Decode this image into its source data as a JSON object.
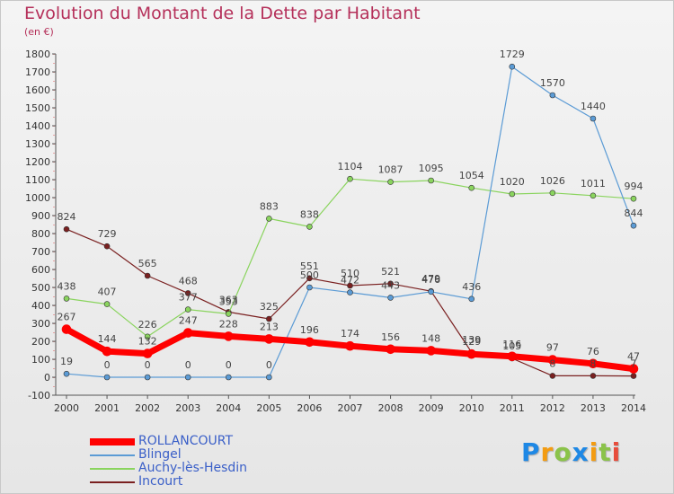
{
  "title": "Evolution du Montant de la Dette par Habitant",
  "subtitle": "(en €)",
  "logo": {
    "text": "Proxiti",
    "letters": [
      "P",
      "r",
      "o",
      "x",
      "i",
      "t",
      "i"
    ],
    "colors": [
      "#1e88e5",
      "#f39c12",
      "#8bc34a",
      "#1e88e5",
      "#f39c12",
      "#8bc34a",
      "#e74c3c"
    ]
  },
  "chart_data": {
    "type": "line",
    "title": "Evolution du Montant de la Dette par Habitant",
    "ylabel": "(en €)",
    "xlabel": "",
    "x": [
      "2000",
      "2001",
      "2002",
      "2003",
      "2004",
      "2005",
      "2006",
      "2007",
      "2008",
      "2009",
      "2010",
      "2011",
      "2012",
      "2013",
      "2014"
    ],
    "ylim": [
      -100,
      1800
    ],
    "yticks": [
      -100,
      0,
      100,
      200,
      300,
      400,
      500,
      600,
      700,
      800,
      900,
      1000,
      1100,
      1200,
      1300,
      1400,
      1500,
      1600,
      1700,
      1800
    ],
    "grid": false,
    "legend_position": "bottom-left",
    "series": [
      {
        "name": "ROLLANCOURT",
        "color": "#ff0000",
        "width": 7,
        "values": [
          267,
          144,
          132,
          247,
          228,
          213,
          196,
          174,
          156,
          148,
          129,
          116,
          97,
          76,
          47
        ],
        "labels": [
          "267",
          "144",
          "132",
          "247",
          "228",
          "213",
          "196",
          "174",
          "156",
          "148",
          "129",
          "116",
          "97",
          "76",
          "47"
        ]
      },
      {
        "name": "Blingel",
        "color": "#5b9bd5",
        "width": 1.2,
        "values": [
          19,
          0,
          0,
          0,
          0,
          0,
          500,
          472,
          443,
          476,
          436,
          1729,
          1570,
          1440,
          844
        ],
        "labels": [
          "19",
          "0",
          "0",
          "0",
          "0",
          "0",
          "500",
          "472",
          "443",
          "476",
          "436",
          "1729",
          "1570",
          "1440",
          "844"
        ]
      },
      {
        "name": "Auchy-lès-Hesdin",
        "color": "#8ad45e",
        "width": 1.2,
        "values": [
          438,
          407,
          226,
          377,
          353,
          883,
          838,
          1104,
          1087,
          1095,
          1054,
          1020,
          1026,
          1011,
          994
        ],
        "labels": [
          "438",
          "407",
          "226",
          "377",
          "353",
          "883",
          "838",
          "1104",
          "1087",
          "1095",
          "1054",
          "1020",
          "1026",
          "1011",
          "994"
        ]
      },
      {
        "name": "Incourt",
        "color": "#7a2020",
        "width": 1.2,
        "values": [
          824,
          729,
          565,
          468,
          363,
          325,
          551,
          510,
          521,
          479,
          139,
          105,
          8,
          8,
          7
        ],
        "labels": [
          "824",
          "729",
          "565",
          "468",
          "363",
          "325",
          "551",
          "510",
          "521",
          "479",
          "139",
          "105",
          "8",
          "8",
          "7"
        ]
      }
    ]
  }
}
